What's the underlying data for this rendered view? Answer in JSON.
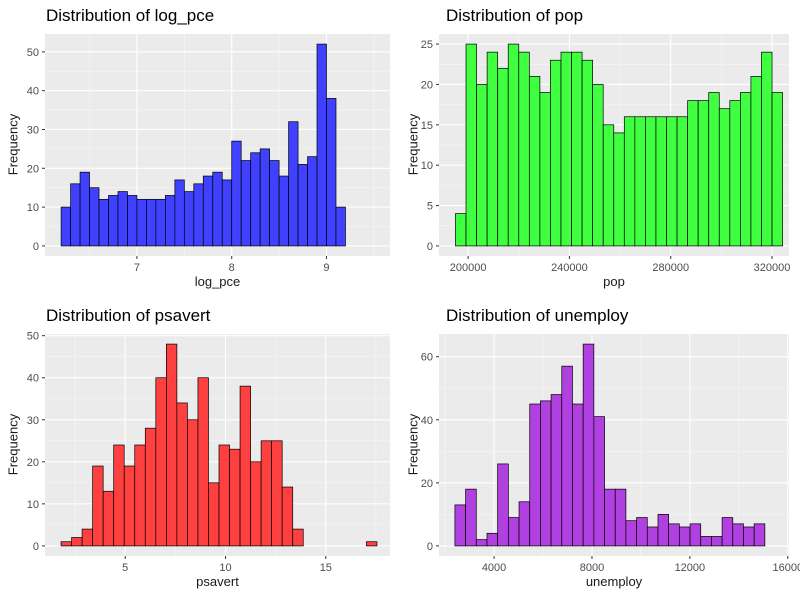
{
  "chart_data": [
    {
      "type": "bar",
      "title": "Distribution of log_pce",
      "xlabel": "log_pce",
      "ylabel": "Frequency",
      "fill": "#4040ff",
      "bin_start": 6.2,
      "bin_width": 0.1,
      "values": [
        10,
        16,
        19,
        15,
        12,
        13,
        14,
        13,
        12,
        12,
        12,
        13,
        17,
        14,
        16,
        18,
        19,
        17,
        27,
        22,
        24,
        25,
        22,
        18,
        32,
        21,
        23,
        52,
        38,
        10
      ],
      "xlim": [
        6.03,
        9.67
      ],
      "ylim": [
        -2.6,
        54.6
      ],
      "xticks": [
        7,
        8,
        9
      ],
      "yticks": [
        0,
        10,
        20,
        30,
        40,
        50
      ]
    },
    {
      "type": "bar",
      "title": "Distribution of pop",
      "xlabel": "pop",
      "ylabel": "Frequency",
      "fill": "#40ff40",
      "bin_start": 195000,
      "bin_width": 4166.67,
      "values": [
        4,
        25,
        20,
        24,
        22,
        25,
        24,
        21,
        19,
        23,
        24,
        24,
        23,
        20,
        15,
        14,
        16,
        16,
        16,
        16,
        16,
        16,
        18,
        18,
        19,
        17,
        18,
        19,
        21,
        24,
        19
      ],
      "xlim": [
        188500,
        326700
      ],
      "ylim": [
        -1.25,
        26.25
      ],
      "xticks": [
        200000,
        240000,
        280000,
        320000
      ],
      "xticklabels": [
        "200000",
        "240000",
        "280000",
        "320000"
      ],
      "yticks": [
        0,
        5,
        10,
        15,
        20,
        25
      ]
    },
    {
      "type": "bar",
      "title": "Distribution of psavert",
      "xlabel": "psavert",
      "ylabel": "Frequency",
      "fill": "#ff4040",
      "bin_start": 1.8,
      "bin_width": 0.525,
      "values": [
        1,
        2,
        4,
        19,
        13,
        24,
        19,
        24,
        28,
        40,
        48,
        34,
        30,
        40,
        15,
        24,
        23,
        38,
        20,
        25,
        25,
        14,
        4,
        0,
        0,
        0,
        0,
        0,
        0,
        1
      ],
      "xlim": [
        1.0,
        18.2
      ],
      "ylim": [
        -2.4,
        50.4
      ],
      "xticks": [
        5,
        10,
        15
      ],
      "yticks": [
        0,
        10,
        20,
        30,
        40,
        50
      ]
    },
    {
      "type": "bar",
      "title": "Distribution of unemploy",
      "xlabel": "unemploy",
      "ylabel": "Frequency",
      "fill": "#b040e0",
      "bin_start": 2400,
      "bin_width": 436.67,
      "values": [
        13,
        18,
        2,
        4,
        26,
        9,
        14,
        45,
        46,
        48,
        57,
        45,
        64,
        41,
        18,
        18,
        8,
        9,
        6,
        10,
        7,
        6,
        7,
        3,
        3,
        9,
        7,
        6,
        7,
        0
      ],
      "xlim": [
        1750,
        16050
      ],
      "ylim": [
        -3.2,
        67.2
      ],
      "xticks": [
        4000,
        8000,
        12000,
        16000
      ],
      "xticklabels": [
        "4000",
        "8000",
        "12000",
        "16000"
      ],
      "yticks": [
        0,
        20,
        40,
        60
      ]
    }
  ]
}
